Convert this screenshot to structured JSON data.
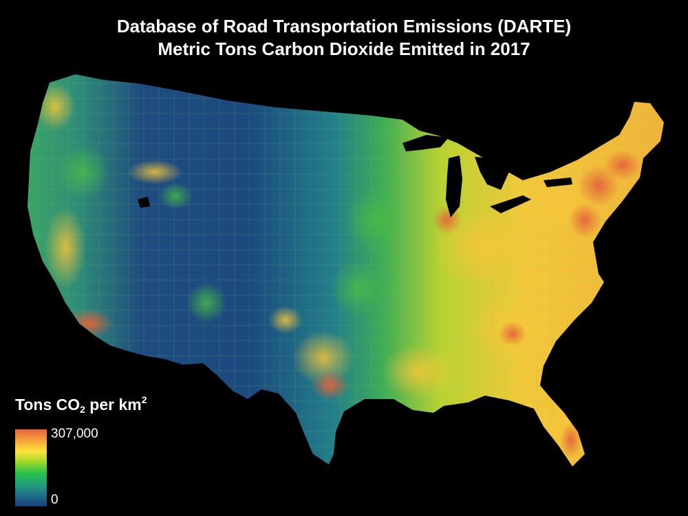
{
  "title": {
    "line1": "Database of Road Transportation Emissions (DARTE)",
    "line2": "Metric Tons Carbon Dioxide Emitted in 2017"
  },
  "legend": {
    "title_prefix": "Tons CO",
    "title_sub": "2",
    "title_mid": " per km",
    "title_sup": "2",
    "max_label": "307,000",
    "min_label": "0",
    "colors": [
      "#1b3f7a",
      "#1f6e8a",
      "#1fa07c",
      "#29c24a",
      "#9bd82a",
      "#ffe23a",
      "#f7a33a",
      "#e4643a"
    ]
  },
  "colors": {
    "background": "#000000",
    "low": "#1b3f7a",
    "mid_low": "#1f8a86",
    "mid": "#2fb85a",
    "mid_high": "#c6d832",
    "high": "#f5c13a",
    "max": "#e4643a",
    "lakes": "#000000"
  }
}
